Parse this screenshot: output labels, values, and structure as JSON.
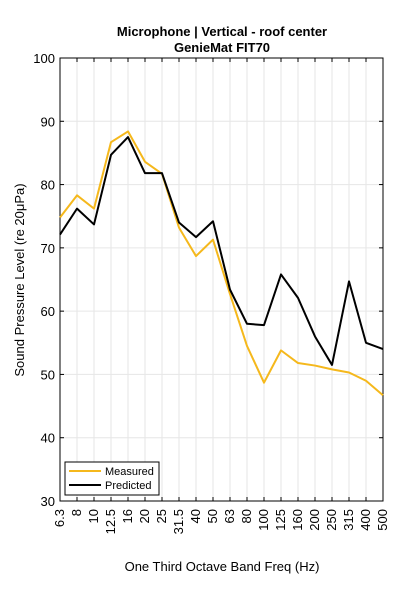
{
  "chart_data": {
    "type": "line",
    "title": "Microphone | Vertical - roof center",
    "subtitle": "GenieMat FIT70",
    "xlabel": "One Third Octave Band Freq (Hz)",
    "ylabel": "Sound Pressure Level (re 20μPa)",
    "categories": [
      "6.3",
      "8",
      "10",
      "12.5",
      "16",
      "20",
      "25",
      "31.5",
      "40",
      "50",
      "63",
      "80",
      "100",
      "125",
      "160",
      "200",
      "250",
      "315",
      "400",
      "500"
    ],
    "ylim": [
      30,
      100
    ],
    "yticks": [
      "30",
      "40",
      "50",
      "60",
      "70",
      "80",
      "90",
      "100"
    ],
    "grid": true,
    "legend_position": "bottom-left",
    "series": [
      {
        "name": "Measured",
        "color": "#f5b81c",
        "values": [
          74.8,
          78.3,
          76.2,
          86.7,
          88.4,
          83.6,
          81.7,
          73.2,
          68.7,
          71.3,
          62.7,
          54.5,
          48.7,
          53.8,
          51.8,
          51.4,
          50.8,
          50.3,
          49.0,
          46.7
        ]
      },
      {
        "name": "Predicted",
        "color": "#000000",
        "values": [
          72.1,
          76.2,
          73.7,
          84.7,
          87.5,
          81.8,
          81.8,
          74.0,
          71.7,
          74.2,
          63.4,
          58.0,
          57.8,
          65.8,
          62.1,
          56.0,
          51.5,
          64.7,
          55.0,
          54.0
        ]
      }
    ]
  }
}
